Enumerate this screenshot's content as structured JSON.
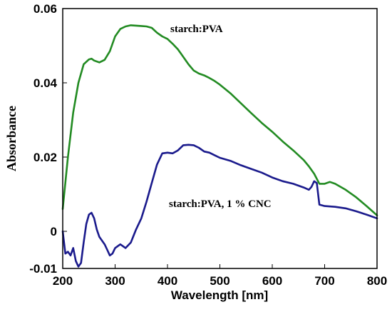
{
  "chart_data": {
    "type": "line",
    "title": "",
    "xlabel": "Wavelength [nm]",
    "ylabel": "Absorbance",
    "xlim": [
      200,
      800
    ],
    "ylim": [
      -0.01,
      0.06
    ],
    "xticks": [
      200,
      300,
      400,
      500,
      600,
      700,
      800
    ],
    "xtick_labels": [
      "200",
      "300",
      "400",
      "500",
      "600",
      "700",
      "800"
    ],
    "yticks": [
      -0.01,
      0,
      0.02,
      0.04,
      0.06
    ],
    "ytick_labels": [
      "-0.01",
      "0",
      "0.02",
      "0.04",
      "0.06"
    ],
    "grid": false,
    "series": [
      {
        "name": "starch:PVA",
        "color": "#228b22",
        "x": [
          200,
          210,
          220,
          230,
          240,
          250,
          255,
          260,
          270,
          280,
          290,
          300,
          310,
          320,
          330,
          340,
          350,
          360,
          370,
          380,
          390,
          400,
          410,
          420,
          430,
          440,
          450,
          460,
          470,
          480,
          490,
          500,
          520,
          540,
          560,
          580,
          600,
          620,
          640,
          660,
          670,
          680,
          690,
          700,
          710,
          720,
          740,
          760,
          780,
          800
        ],
        "y": [
          0.006,
          0.02,
          0.032,
          0.04,
          0.045,
          0.0463,
          0.0465,
          0.046,
          0.0455,
          0.0462,
          0.0485,
          0.0525,
          0.0545,
          0.0552,
          0.0555,
          0.0554,
          0.0553,
          0.0552,
          0.0548,
          0.0535,
          0.0525,
          0.0518,
          0.0505,
          0.049,
          0.047,
          0.045,
          0.0433,
          0.0425,
          0.042,
          0.0413,
          0.0405,
          0.0395,
          0.0372,
          0.0345,
          0.0318,
          0.0292,
          0.0268,
          0.0242,
          0.0218,
          0.0192,
          0.0175,
          0.0155,
          0.0128,
          0.0128,
          0.0133,
          0.0128,
          0.0112,
          0.0092,
          0.0068,
          0.0043
        ]
      },
      {
        "name": "starch:PVA, 1 % CNC",
        "color": "#1a1a8c",
        "x": [
          200,
          205,
          210,
          215,
          220,
          225,
          230,
          235,
          240,
          245,
          250,
          255,
          260,
          265,
          270,
          275,
          280,
          285,
          290,
          295,
          300,
          310,
          320,
          330,
          340,
          350,
          360,
          370,
          380,
          390,
          400,
          410,
          420,
          430,
          440,
          450,
          460,
          470,
          480,
          490,
          500,
          520,
          540,
          560,
          580,
          600,
          620,
          640,
          660,
          670,
          675,
          680,
          685,
          690,
          700,
          720,
          740,
          760,
          780,
          800
        ],
        "y": [
          0.0,
          -0.006,
          -0.0055,
          -0.0065,
          -0.0045,
          -0.008,
          -0.0095,
          -0.0085,
          -0.003,
          0.002,
          0.0045,
          0.005,
          0.0035,
          0.0005,
          -0.0015,
          -0.0025,
          -0.0035,
          -0.005,
          -0.0065,
          -0.006,
          -0.0045,
          -0.0035,
          -0.0045,
          -0.003,
          0.0005,
          0.0035,
          0.008,
          0.013,
          0.018,
          0.021,
          0.0212,
          0.021,
          0.0218,
          0.0232,
          0.0233,
          0.0232,
          0.0225,
          0.0215,
          0.0212,
          0.0205,
          0.0198,
          0.019,
          0.0178,
          0.0168,
          0.0158,
          0.0145,
          0.0135,
          0.0128,
          0.0118,
          0.0112,
          0.012,
          0.0135,
          0.013,
          0.0072,
          0.0068,
          0.0066,
          0.0062,
          0.0054,
          0.0045,
          0.0035
        ]
      }
    ]
  }
}
